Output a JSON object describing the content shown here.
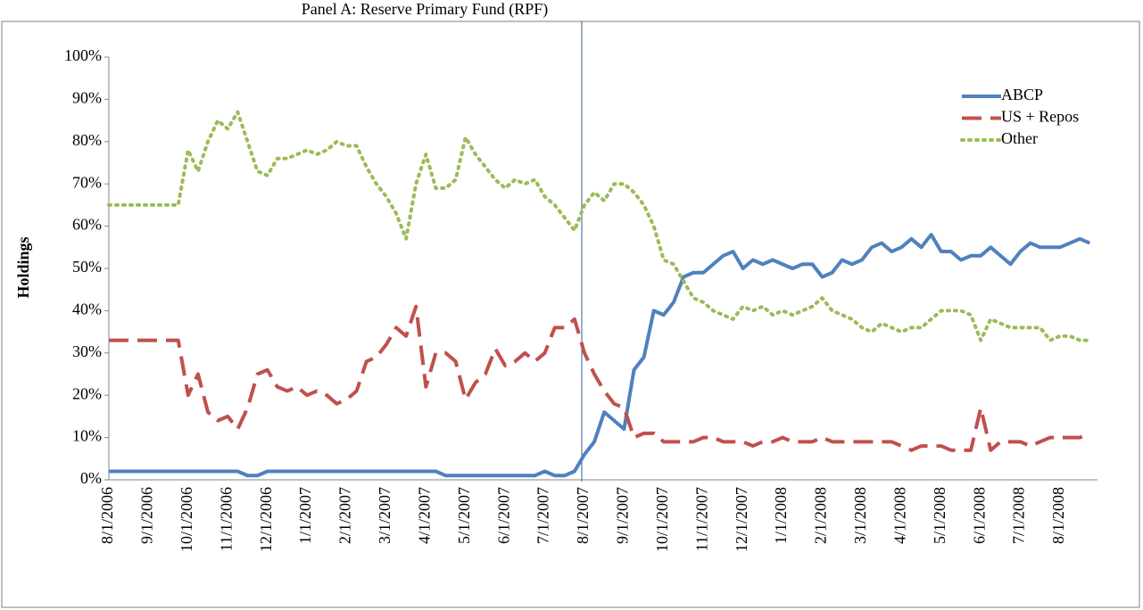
{
  "chart_data": {
    "type": "line",
    "title": "Panel A: Reserve Primary Fund (RPF)",
    "y_label": "Holdings",
    "categories": [
      "8/1/2006",
      null,
      null,
      null,
      "9/1/2006",
      null,
      null,
      null,
      "10/1/2006",
      null,
      null,
      null,
      "11/1/2006",
      null,
      null,
      null,
      "12/1/2006",
      null,
      null,
      null,
      "1/1/2007",
      null,
      null,
      null,
      "2/1/2007",
      null,
      null,
      null,
      "3/1/2007",
      null,
      null,
      null,
      "4/1/2007",
      null,
      null,
      null,
      "5/1/2007",
      null,
      null,
      null,
      "6/1/2007",
      null,
      null,
      null,
      "7/1/2007",
      null,
      null,
      null,
      "8/1/2007",
      null,
      null,
      null,
      "9/1/2007",
      null,
      null,
      null,
      "10/1/2007",
      null,
      null,
      null,
      "11/1/2007",
      null,
      null,
      null,
      "12/1/2007",
      null,
      null,
      null,
      "1/1/2008",
      null,
      null,
      null,
      "2/1/2008",
      null,
      null,
      null,
      "3/1/2008",
      null,
      null,
      null,
      "4/1/2008",
      null,
      null,
      null,
      "5/1/2008",
      null,
      null,
      null,
      "6/1/2008",
      null,
      null,
      null,
      "7/1/2008",
      null,
      null,
      null,
      "8/1/2008",
      null,
      null,
      null
    ],
    "series": [
      {
        "name": "ABCP",
        "color": "#4f81bd",
        "style": "solid",
        "values": [
          2,
          2,
          2,
          2,
          2,
          2,
          2,
          2,
          2,
          2,
          2,
          2,
          2,
          2,
          1,
          1,
          2,
          2,
          2,
          2,
          2,
          2,
          2,
          2,
          2,
          2,
          2,
          2,
          2,
          2,
          2,
          2,
          2,
          2,
          1,
          1,
          1,
          1,
          1,
          1,
          1,
          1,
          1,
          1,
          2,
          1,
          1,
          2,
          6,
          9,
          16,
          14,
          12,
          26,
          29,
          40,
          39,
          42,
          48,
          49,
          49,
          51,
          53,
          54,
          50,
          52,
          51,
          52,
          51,
          50,
          51,
          51,
          48,
          49,
          52,
          51,
          52,
          55,
          56,
          54,
          55,
          57,
          55,
          58,
          54,
          54,
          52,
          53,
          53,
          55,
          53,
          51,
          54,
          56,
          55,
          55,
          55,
          56,
          57,
          56
        ]
      },
      {
        "name": "US + Repos",
        "color": "#c0504d",
        "style": "dashed",
        "values": [
          33,
          33,
          33,
          33,
          33,
          33,
          33,
          33,
          20,
          25,
          16,
          14,
          15,
          12,
          17,
          25,
          26,
          22,
          21,
          22,
          20,
          21,
          20,
          18,
          19,
          21,
          28,
          29,
          32,
          36,
          34,
          41,
          22,
          30,
          30,
          28,
          19,
          23,
          25,
          31,
          27,
          28,
          30,
          28,
          30,
          36,
          36,
          38,
          30,
          25,
          21,
          18,
          17,
          10,
          11,
          11,
          9,
          9,
          9,
          9,
          10,
          10,
          9,
          9,
          9,
          8,
          9,
          9,
          10,
          9,
          9,
          9,
          10,
          9,
          9,
          9,
          9,
          9,
          9,
          9,
          8,
          7,
          8,
          8,
          8,
          7,
          7,
          7,
          17,
          7,
          9,
          9,
          9,
          8,
          9,
          10,
          10,
          10,
          10,
          11
        ]
      },
      {
        "name": "Other",
        "color": "#9bbb59",
        "style": "dotted",
        "values": [
          65,
          65,
          65,
          65,
          65,
          65,
          65,
          65,
          78,
          73,
          80,
          85,
          83,
          87,
          80,
          73,
          72,
          76,
          76,
          77,
          78,
          77,
          78,
          80,
          79,
          79,
          74,
          70,
          67,
          63,
          57,
          70,
          77,
          69,
          69,
          71,
          81,
          77,
          74,
          71,
          69,
          71,
          70,
          71,
          67,
          65,
          62,
          59,
          65,
          68,
          66,
          70,
          70,
          68,
          65,
          60,
          52,
          51,
          47,
          43,
          42,
          40,
          39,
          38,
          41,
          40,
          41,
          39,
          40,
          39,
          40,
          41,
          43,
          40,
          39,
          38,
          36,
          35,
          37,
          36,
          35,
          36,
          36,
          38,
          40,
          40,
          40,
          39,
          33,
          38,
          37,
          36,
          36,
          36,
          36,
          33,
          34,
          34,
          33,
          33
        ]
      }
    ],
    "ylim": [
      0,
      100
    ],
    "yticks": [
      {
        "value": 0,
        "label": "0%"
      },
      {
        "value": 10,
        "label": "10%"
      },
      {
        "value": 20,
        "label": "20%"
      },
      {
        "value": 30,
        "label": "30%"
      },
      {
        "value": 40,
        "label": "40%"
      },
      {
        "value": 50,
        "label": "50%"
      },
      {
        "value": 60,
        "label": "60%"
      },
      {
        "value": 70,
        "label": "70%"
      },
      {
        "value": 80,
        "label": "80%"
      },
      {
        "value": 90,
        "label": "90%"
      },
      {
        "value": 100,
        "label": "100%"
      }
    ],
    "legend": "upper right"
  }
}
